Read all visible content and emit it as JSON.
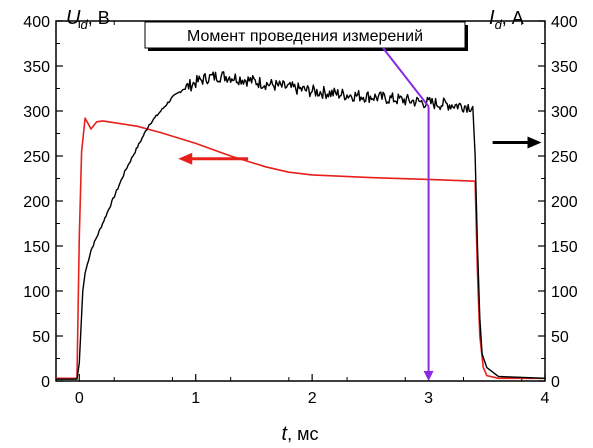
{
  "chart_data": {
    "type": "line",
    "x_axis": {
      "label_var": "t",
      "label_unit": ", мс",
      "range": [
        -0.2,
        4.0
      ],
      "ticks": [
        0,
        1,
        2,
        3,
        4
      ],
      "tick_labels": [
        "0",
        "1",
        "2",
        "3",
        "4"
      ],
      "minor_step": 0.5
    },
    "y_left": {
      "label_var": "U",
      "label_sub": "d",
      "label_unit": ", В",
      "range": [
        0,
        400
      ],
      "ticks": [
        0,
        50,
        100,
        150,
        200,
        250,
        300,
        350,
        400
      ],
      "tick_labels": [
        "0",
        "50",
        "100",
        "150",
        "200",
        "250",
        "300",
        "350",
        "400"
      ]
    },
    "y_right": {
      "label_var": "I",
      "label_sub": "d",
      "label_unit": ", А",
      "range": [
        0,
        400
      ],
      "ticks": [
        0,
        50,
        100,
        150,
        200,
        250,
        300,
        350,
        400
      ],
      "tick_labels": [
        "0",
        "50",
        "100",
        "150",
        "200",
        "250",
        "300",
        "350",
        "400"
      ]
    },
    "series": [
      {
        "axis": "left",
        "color": "#e8201c",
        "x": [
          -0.2,
          -0.02,
          0.0,
          0.02,
          0.05,
          0.08,
          0.1,
          0.15,
          0.2,
          0.3,
          0.5,
          0.7,
          1.0,
          1.3,
          1.6,
          1.8,
          2.0,
          2.5,
          3.0,
          3.2,
          3.4,
          3.42,
          3.44,
          3.47,
          3.5,
          3.6,
          4.0
        ],
        "y": [
          3,
          3,
          160,
          255,
          292,
          285,
          280,
          288,
          289,
          287,
          283,
          276,
          264,
          250,
          238,
          232,
          229,
          226,
          224,
          223,
          222,
          120,
          50,
          15,
          6,
          3,
          3
        ]
      },
      {
        "axis": "right",
        "color": "#000000",
        "noise": 7,
        "x": [
          -0.2,
          -0.02,
          0.0,
          0.03,
          0.05,
          0.1,
          0.2,
          0.3,
          0.4,
          0.5,
          0.6,
          0.7,
          0.8,
          0.9,
          1.0,
          1.1,
          1.2,
          1.3,
          1.5,
          1.7,
          2.0,
          2.3,
          2.5,
          2.8,
          3.0,
          3.2,
          3.38,
          3.4,
          3.42,
          3.44,
          3.46,
          3.5,
          3.6,
          4.0
        ],
        "y": [
          2,
          2,
          20,
          100,
          120,
          145,
          175,
          205,
          235,
          260,
          285,
          300,
          315,
          325,
          332,
          337,
          339,
          338,
          333,
          328,
          322,
          318,
          316,
          312,
          309,
          307,
          305,
          250,
          150,
          70,
          30,
          15,
          5,
          3
        ]
      }
    ],
    "annotations": [
      {
        "type": "label_box",
        "text": "Момент проведения измерений",
        "pointer_x": 3.0,
        "pointer_y": 305,
        "color": "#8a2be2"
      },
      {
        "type": "vline",
        "x": 3.0,
        "y_from": 305,
        "y_to": 0,
        "color": "#8a2be2"
      },
      {
        "type": "arrow",
        "direction": "left",
        "x_from": 1.45,
        "x_to": 0.85,
        "y": 247,
        "color": "#e8201c",
        "meaning": "red curve uses left axis"
      },
      {
        "type": "arrow",
        "direction": "right",
        "x_from": 3.55,
        "x_to": 3.97,
        "y": 265,
        "color": "#000000",
        "meaning": "black curve uses right axis"
      }
    ]
  }
}
